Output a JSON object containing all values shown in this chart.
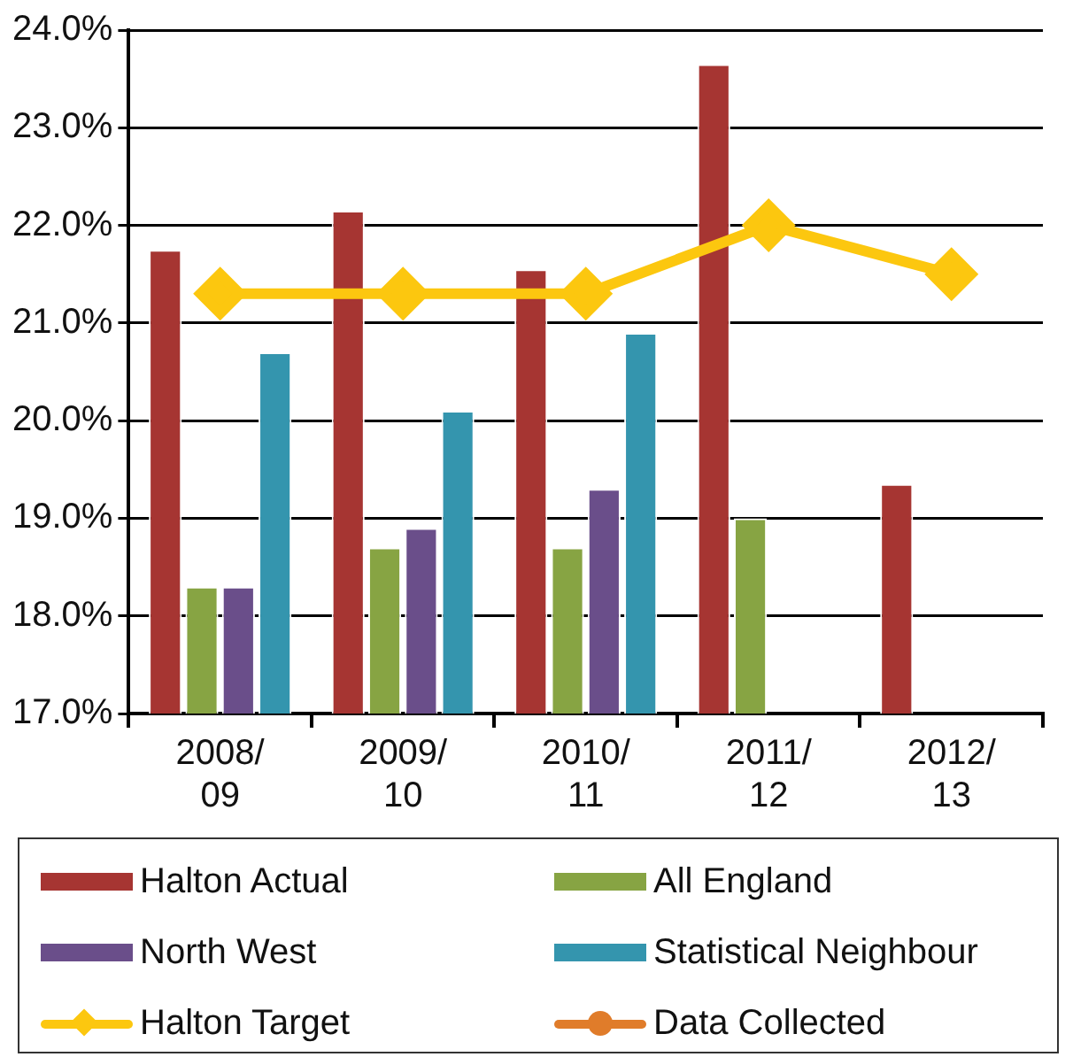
{
  "chart_data": {
    "type": "bar",
    "categories": [
      "2008/09",
      "2009/10",
      "2010/11",
      "2011/12",
      "2012/13"
    ],
    "series": [
      {
        "name": "Halton Actual",
        "color": "#a63532",
        "values": [
          21.75,
          22.15,
          21.55,
          23.65,
          19.35
        ]
      },
      {
        "name": "All England",
        "color": "#87a443",
        "values": [
          18.3,
          18.7,
          18.7,
          19.0,
          null
        ]
      },
      {
        "name": "North West",
        "color": "#6a4e8a",
        "values": [
          18.3,
          18.9,
          19.3,
          null,
          null
        ]
      },
      {
        "name": "Statistical Neighbour",
        "color": "#3495ae",
        "values": [
          20.7,
          20.1,
          20.9,
          null,
          null
        ]
      },
      {
        "name": "Halton Target",
        "type": "line",
        "marker": "diamond",
        "color": "#fcc70f",
        "values": [
          21.3,
          21.3,
          21.3,
          22.0,
          21.5
        ]
      },
      {
        "name": "Data Collected",
        "type": "line",
        "marker": "circle",
        "color": "#e07c2a",
        "values": [
          null,
          null,
          null,
          null,
          null
        ]
      }
    ],
    "ylim": [
      17,
      24
    ],
    "yticks": [
      {
        "value": 17,
        "label": "17.0%"
      },
      {
        "value": 18,
        "label": "18.0%"
      },
      {
        "value": 19,
        "label": "19.0%"
      },
      {
        "value": 20,
        "label": "20.0%"
      },
      {
        "value": 21,
        "label": "21.0%"
      },
      {
        "value": 22,
        "label": "22.0%"
      },
      {
        "value": 23,
        "label": "23.0%"
      },
      {
        "value": 24,
        "label": "24.0%"
      }
    ],
    "grid": "y",
    "legend": "bottom"
  }
}
